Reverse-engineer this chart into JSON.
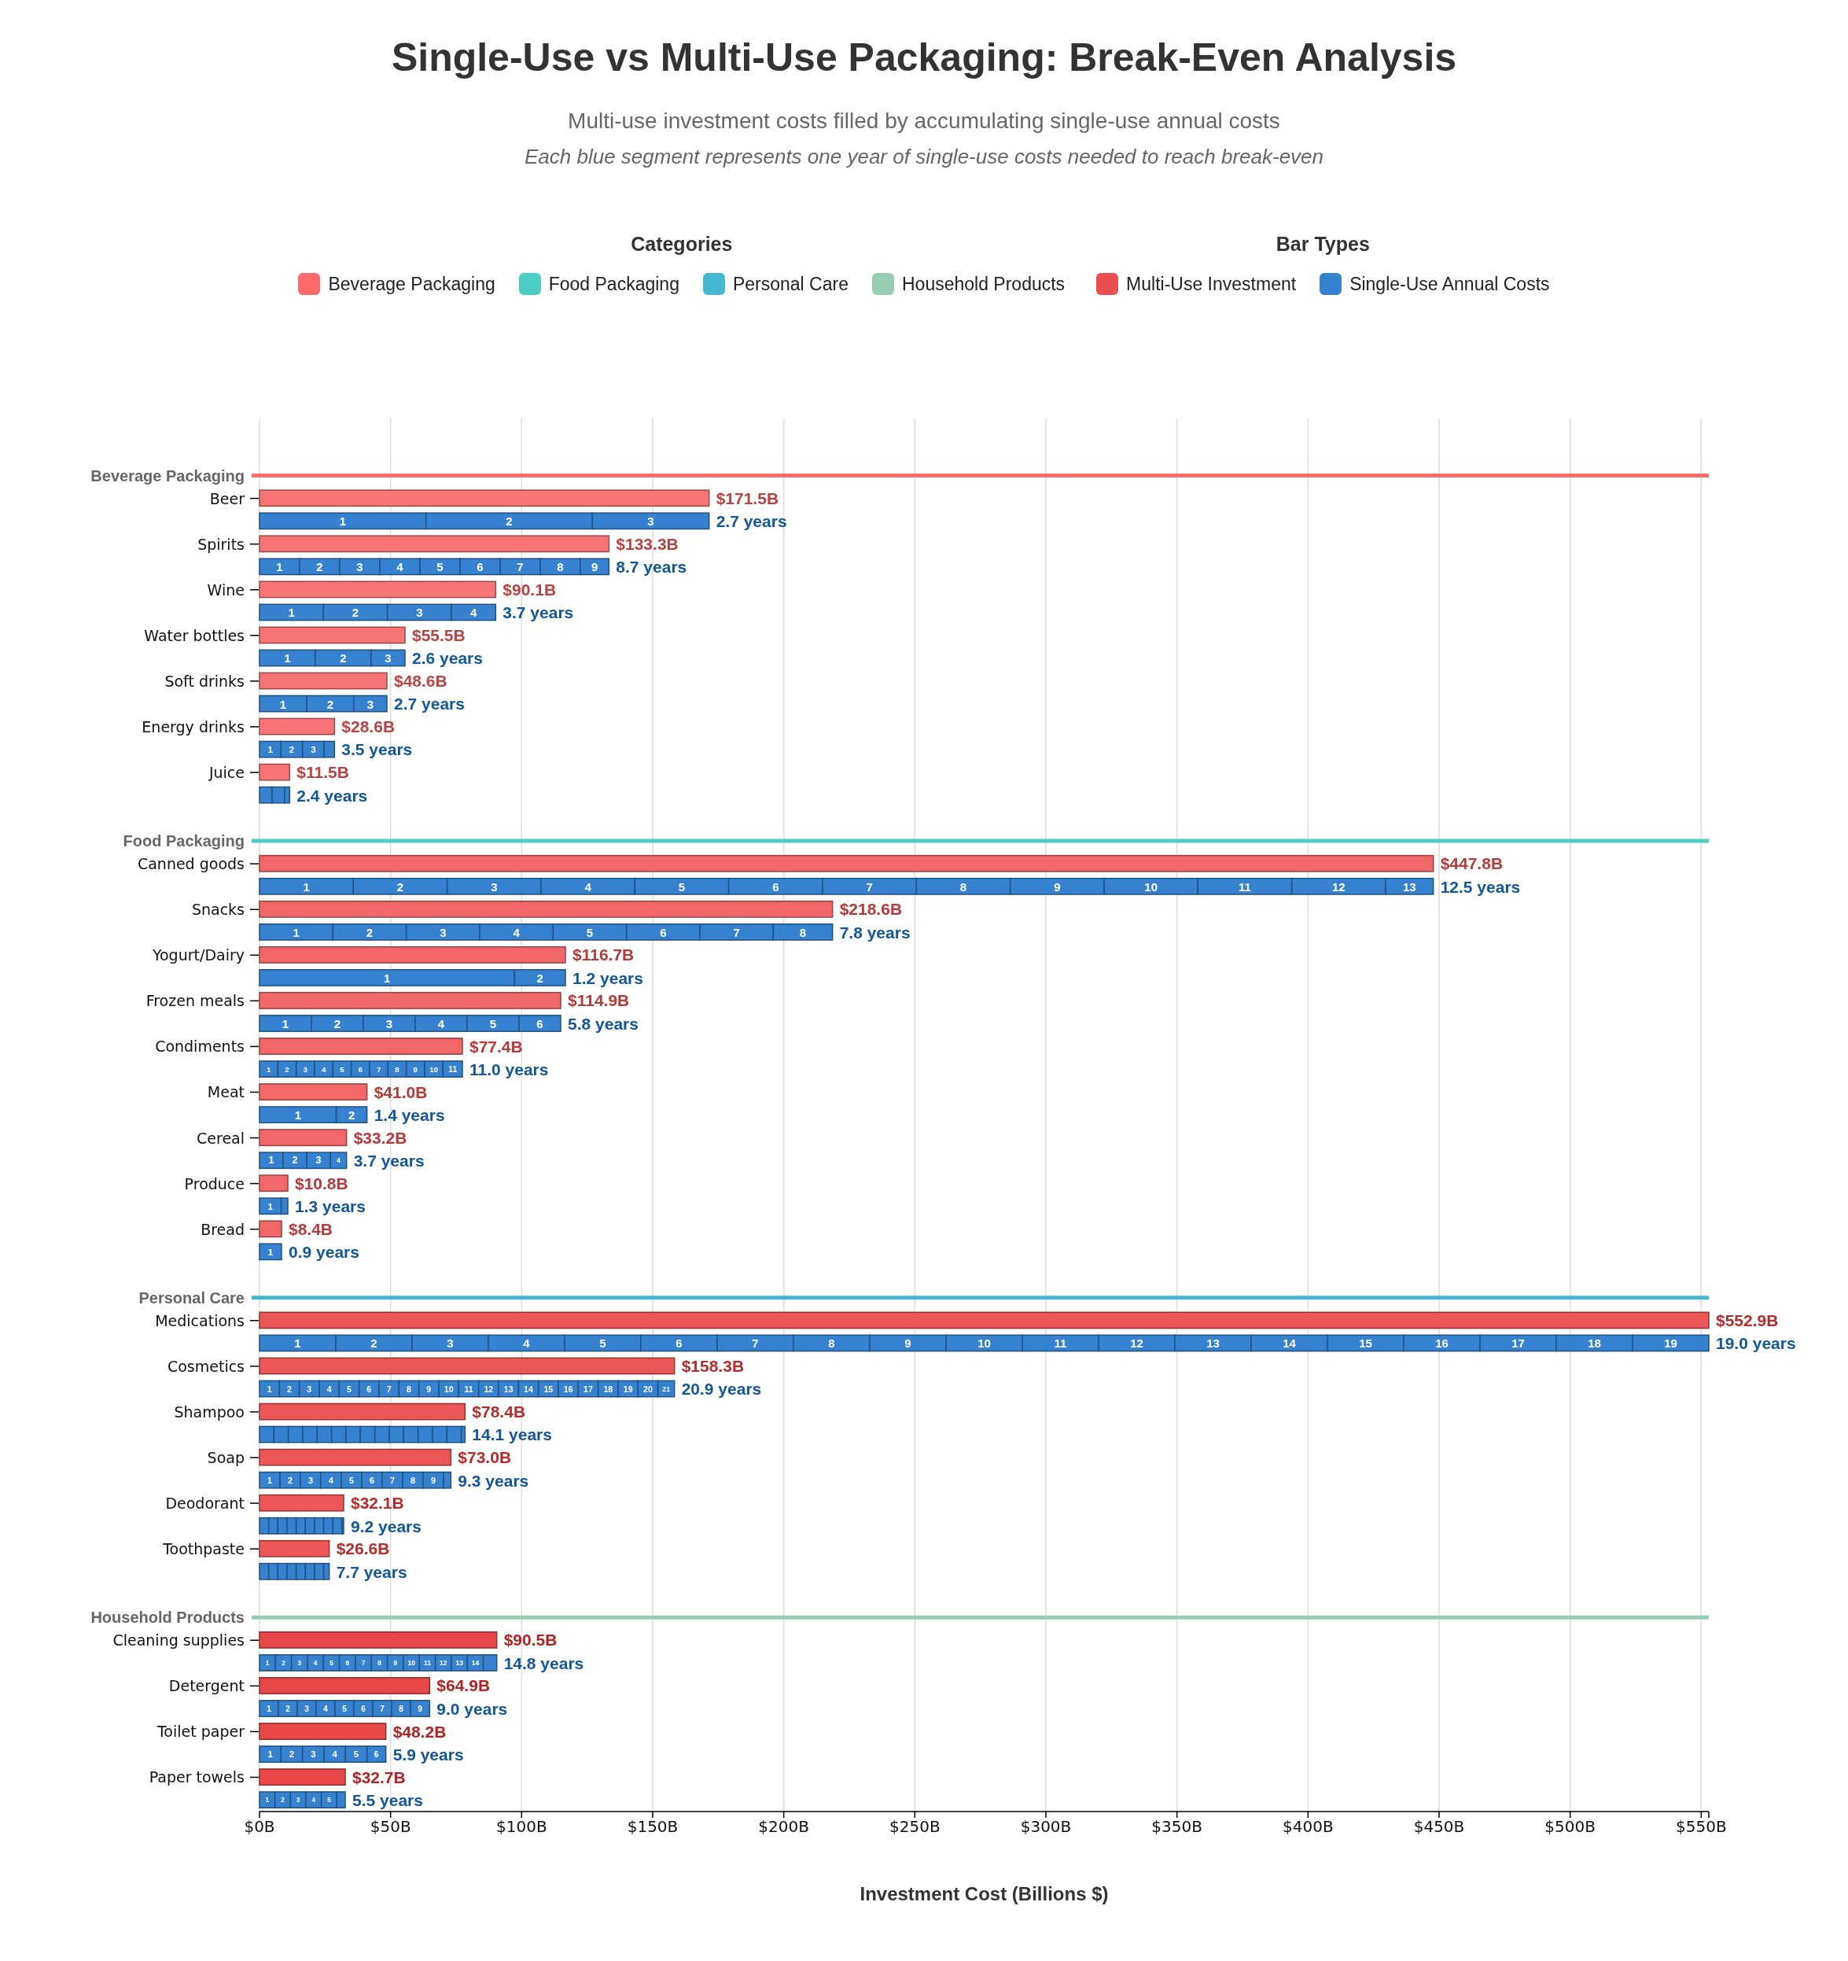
{
  "chart_data": {
    "type": "bar",
    "orientation": "horizontal",
    "stacked": true,
    "title": "Single-Use vs Multi-Use Packaging: Break-Even Analysis",
    "subtitle": "Multi-use investment costs filled by accumulating single-use annual costs",
    "annotations": [
      "Each blue segment represents one year of single-use costs needed to reach break-even",
      "Categories",
      {
        "text": "2.7 years",
        "x": 171.5
      },
      {
        "text": "8.7 years",
        "x": 133.3
      },
      {
        "text": "3.7 years",
        "x": 90.1
      },
      {
        "text": "2.6 years",
        "x": 55.5
      },
      {
        "text": "2.7 years",
        "x": 48.6
      },
      {
        "text": "3.5 years",
        "x": 28.6
      },
      {
        "text": "2.4 years",
        "x": 11.5
      },
      {
        "text": "12.5 years",
        "x": 447.8
      },
      {
        "text": "7.8 years",
        "x": 218.6
      },
      {
        "text": "1.2 years",
        "x": 116.7
      },
      {
        "text": "5.8 years",
        "x": 114.9
      },
      {
        "text": "11.0 years",
        "x": 77.4
      },
      {
        "text": "1.4 years",
        "x": 41.0
      },
      {
        "text": "3.7 years",
        "x": 33.2
      },
      {
        "text": "1.3 years",
        "x": 10.8
      },
      {
        "text": "0.9 years",
        "x": 8.4
      },
      {
        "text": "19.0 years",
        "x": 552.9
      },
      {
        "text": "20.9 years",
        "x": 158.3
      },
      {
        "text": "14.1 years",
        "x": 78.4
      },
      {
        "text": "9.3 years",
        "x": 73.0
      },
      {
        "text": "9.2 years",
        "x": 32.1
      },
      {
        "text": "7.7 years",
        "x": 26.6
      },
      {
        "text": "14.8 years",
        "x": 90.5
      },
      {
        "text": "9.0 years",
        "x": 64.9
      },
      {
        "text": "5.9 years",
        "x": 48.2
      },
      {
        "text": "5.5 years",
        "x": 32.7
      }
    ],
    "legend_title": "Bar Types",
    "legend": "top",
    "grid": "x",
    "xlabel": "Investment Cost (Billions $)",
    "xlim": [
      0,
      552.9
    ],
    "xticks": [
      {
        "value": 0,
        "label": "$0B"
      },
      {
        "value": 50,
        "label": "$50B"
      },
      {
        "value": 100,
        "label": "$100B"
      },
      {
        "value": 150,
        "label": "$150B"
      },
      {
        "value": 200,
        "label": "$200B"
      },
      {
        "value": 250,
        "label": "$250B"
      },
      {
        "value": 300,
        "label": "$300B"
      },
      {
        "value": 350,
        "label": "$350B"
      },
      {
        "value": 400,
        "label": "$400B"
      },
      {
        "value": 450,
        "label": "$450B"
      },
      {
        "value": 500,
        "label": "$500B"
      },
      {
        "value": 550,
        "label": "$550B"
      },
      {
        "value": 552.9,
        "label": null
      }
    ],
    "ref_lines": [
      {
        "axis": "y",
        "value": "Beverage Packaging",
        "color": "#ff6b6b"
      },
      {
        "axis": "y",
        "value": "Food Packaging",
        "color": "#4ecdc4"
      },
      {
        "axis": "y",
        "value": "Personal Care",
        "color": "#45b7d1"
      },
      {
        "axis": "y",
        "value": "Household Products",
        "color": "#96ceb4"
      }
    ],
    "categories": [
      null,
      null,
      "Beverage Packaging",
      "Beer",
      null,
      "Spirits",
      null,
      "Wine",
      null,
      "Water bottles",
      null,
      "Soft drinks",
      null,
      "Energy drinks",
      null,
      "Juice",
      null,
      null,
      "Food Packaging",
      "Canned goods",
      null,
      "Snacks",
      null,
      "Yogurt/Dairy",
      null,
      "Frozen meals",
      null,
      "Condiments",
      null,
      "Meat",
      null,
      "Cereal",
      null,
      "Produce",
      null,
      "Bread",
      null,
      null,
      "Personal Care",
      "Medications",
      null,
      "Cosmetics",
      null,
      "Shampoo",
      null,
      "Soap",
      null,
      "Deodorant",
      null,
      "Toothpaste",
      null,
      null,
      "Household Products",
      "Cleaning supplies",
      null,
      "Detergent",
      null,
      "Toilet paper",
      null,
      "Paper towels",
      null
    ],
    "totals": [
      null,
      null,
      null,
      "$171.5B",
      null,
      "$133.3B",
      null,
      "$90.1B",
      null,
      "$55.5B",
      null,
      "$48.6B",
      null,
      "$28.6B",
      null,
      "$11.5B",
      null,
      null,
      null,
      "$447.8B",
      null,
      "$218.6B",
      null,
      "$116.7B",
      null,
      "$114.9B",
      null,
      "$77.4B",
      null,
      "$41.0B",
      null,
      "$33.2B",
      null,
      "$10.8B",
      null,
      "$8.4B",
      null,
      null,
      null,
      "$552.9B",
      null,
      "$158.3B",
      null,
      "$78.4B",
      null,
      "$73.0B",
      null,
      "$32.1B",
      null,
      "$26.6B",
      null,
      null,
      null,
      "$90.5B",
      null,
      "$64.9B",
      null,
      "$48.2B",
      null,
      "$32.7B",
      null
    ],
    "series": [
      {
        "name": "Multi-Use Investment",
        "color": "#ea4f4f",
        "colors": [
          null,
          null,
          null,
          "#f77575",
          null,
          "#f77575",
          null,
          "#f77575",
          null,
          "#f77575",
          null,
          "#f77575",
          null,
          "#f77575",
          null,
          "#f77575",
          null,
          null,
          null,
          "#f26868",
          null,
          "#f26868",
          null,
          "#f26868",
          null,
          "#f26868",
          null,
          "#f26868",
          null,
          "#f26868",
          null,
          "#f26868",
          null,
          "#f26868",
          null,
          "#f26868",
          null,
          null,
          null,
          "#ec5656",
          null,
          "#ec5656",
          null,
          "#ec5656",
          null,
          "#ec5656",
          null,
          "#ec5656",
          null,
          "#ec5656",
          null,
          null,
          null,
          "#e84848",
          null,
          "#e84848",
          null,
          "#e84848",
          null,
          "#e84848",
          null
        ],
        "values": [
          null,
          null,
          null,
          171.5,
          null,
          133.3,
          null,
          90.1,
          null,
          55.5,
          null,
          48.6,
          null,
          28.6,
          null,
          11.5,
          null,
          null,
          null,
          447.8,
          null,
          218.6,
          null,
          116.7,
          null,
          114.9,
          null,
          77.4,
          null,
          41.0,
          null,
          33.2,
          null,
          10.8,
          null,
          8.4,
          null,
          null,
          null,
          552.9,
          null,
          158.3,
          null,
          78.4,
          null,
          73.0,
          null,
          32.1,
          null,
          26.6,
          null,
          null,
          null,
          90.5,
          null,
          64.9,
          null,
          48.2,
          null,
          32.7,
          null
        ]
      },
      {
        "name": "Single-Use Annual Costs",
        "color": "#3682d0",
        "values": [
          null,
          null,
          null,
          null,
          null,
          null,
          null,
          null,
          null,
          null,
          null,
          null,
          null,
          null,
          null,
          null,
          null,
          null,
          null,
          null,
          null,
          null,
          null,
          null,
          null,
          null,
          null,
          null,
          null,
          null,
          null,
          null,
          null,
          null,
          null,
          null,
          null,
          null,
          null,
          null,
          null,
          null,
          null,
          null,
          null,
          null,
          null,
          null,
          null,
          null,
          null,
          null,
          null,
          null,
          null,
          null,
          null,
          null,
          null,
          null,
          null
        ]
      },
      {
        "name": "1",
        "color": "#3682d0",
        "values": [
          null,
          null,
          null,
          null,
          63.5,
          null,
          15.3,
          null,
          24.4,
          null,
          21.3,
          null,
          18.0,
          null,
          8.2,
          null,
          4.8,
          null,
          null,
          null,
          35.8,
          null,
          28.0,
          null,
          97.3,
          null,
          19.8,
          null,
          7.0,
          null,
          29.3,
          null,
          9.0,
          null,
          8.3,
          null,
          8.4,
          null,
          null,
          null,
          29.1,
          null,
          7.6,
          null,
          5.5,
          null,
          7.8,
          null,
          3.5,
          null,
          3.5,
          null,
          null,
          null,
          6.1,
          null,
          7.2,
          null,
          8.2,
          null,
          5.9
        ]
      },
      {
        "name": "2",
        "color": "#3682d0",
        "values": [
          null,
          null,
          null,
          null,
          63.5,
          null,
          15.3,
          null,
          24.4,
          null,
          21.3,
          null,
          18.0,
          null,
          8.2,
          null,
          4.8,
          null,
          null,
          null,
          35.8,
          null,
          28.0,
          null,
          19.4,
          null,
          19.8,
          null,
          7.0,
          null,
          11.7,
          null,
          9.0,
          null,
          2.5,
          null,
          null,
          null,
          null,
          null,
          29.1,
          null,
          7.6,
          null,
          5.5,
          null,
          7.8,
          null,
          3.5,
          null,
          3.5,
          null,
          null,
          null,
          6.1,
          null,
          7.2,
          null,
          8.2,
          null,
          5.9
        ]
      },
      {
        "name": "3",
        "color": "#3682d0",
        "values": [
          null,
          null,
          null,
          null,
          44.5,
          null,
          15.3,
          null,
          24.4,
          null,
          12.9,
          null,
          12.6,
          null,
          8.2,
          null,
          1.9,
          null,
          null,
          null,
          35.8,
          null,
          28.0,
          null,
          null,
          null,
          19.8,
          null,
          7.0,
          null,
          null,
          null,
          9.0,
          null,
          null,
          null,
          null,
          null,
          null,
          null,
          29.1,
          null,
          7.6,
          null,
          5.5,
          null,
          7.8,
          null,
          3.5,
          null,
          3.5,
          null,
          null,
          null,
          6.1,
          null,
          7.2,
          null,
          8.2,
          null,
          5.9
        ]
      },
      {
        "name": "4",
        "color": "#3682d0",
        "values": [
          null,
          null,
          null,
          null,
          null,
          null,
          15.3,
          null,
          16.9,
          null,
          null,
          null,
          null,
          null,
          4.0,
          null,
          null,
          null,
          null,
          null,
          35.8,
          null,
          28.0,
          null,
          null,
          null,
          19.8,
          null,
          7.0,
          null,
          null,
          null,
          6.2,
          null,
          null,
          null,
          null,
          null,
          null,
          null,
          29.1,
          null,
          7.6,
          null,
          5.5,
          null,
          7.8,
          null,
          3.5,
          null,
          3.5,
          null,
          null,
          null,
          6.1,
          null,
          7.2,
          null,
          8.2,
          null,
          5.9
        ]
      },
      {
        "name": "5",
        "color": "#3682d0",
        "values": [
          null,
          null,
          null,
          null,
          null,
          null,
          15.3,
          null,
          null,
          null,
          null,
          null,
          null,
          null,
          null,
          null,
          null,
          null,
          null,
          null,
          35.8,
          null,
          28.0,
          null,
          null,
          null,
          19.8,
          null,
          7.0,
          null,
          null,
          null,
          null,
          null,
          null,
          null,
          null,
          null,
          null,
          null,
          29.1,
          null,
          7.6,
          null,
          5.5,
          null,
          7.8,
          null,
          3.5,
          null,
          3.5,
          null,
          null,
          null,
          6.1,
          null,
          7.2,
          null,
          8.2,
          null,
          5.9
        ]
      },
      {
        "name": "6",
        "color": "#3682d0",
        "values": [
          null,
          null,
          null,
          null,
          null,
          null,
          15.3,
          null,
          null,
          null,
          null,
          null,
          null,
          null,
          null,
          null,
          null,
          null,
          null,
          null,
          35.8,
          null,
          28.0,
          null,
          null,
          null,
          15.9,
          null,
          7.0,
          null,
          null,
          null,
          null,
          null,
          null,
          null,
          null,
          null,
          null,
          null,
          29.1,
          null,
          7.6,
          null,
          5.5,
          null,
          7.8,
          null,
          3.5,
          null,
          3.5,
          null,
          null,
          null,
          6.1,
          null,
          7.2,
          null,
          7.2,
          null,
          3.2
        ]
      },
      {
        "name": "7",
        "color": "#3682d0",
        "values": [
          null,
          null,
          null,
          null,
          null,
          null,
          15.3,
          null,
          null,
          null,
          null,
          null,
          null,
          null,
          null,
          null,
          null,
          null,
          null,
          null,
          35.8,
          null,
          28.0,
          null,
          null,
          null,
          null,
          null,
          7.0,
          null,
          null,
          null,
          null,
          null,
          null,
          null,
          null,
          null,
          null,
          null,
          29.1,
          null,
          7.6,
          null,
          5.5,
          null,
          7.8,
          null,
          3.5,
          null,
          3.5,
          null,
          null,
          null,
          6.1,
          null,
          7.2,
          null,
          null,
          null,
          null
        ]
      },
      {
        "name": "8",
        "color": "#3682d0",
        "values": [
          null,
          null,
          null,
          null,
          null,
          null,
          15.3,
          null,
          null,
          null,
          null,
          null,
          null,
          null,
          null,
          null,
          null,
          null,
          null,
          null,
          35.8,
          null,
          22.6,
          null,
          null,
          null,
          null,
          null,
          7.0,
          null,
          null,
          null,
          null,
          null,
          null,
          null,
          null,
          null,
          null,
          null,
          29.1,
          null,
          7.6,
          null,
          5.5,
          null,
          7.8,
          null,
          3.5,
          null,
          2.1,
          null,
          null,
          null,
          6.1,
          null,
          7.2,
          null,
          null,
          null,
          null
        ]
      },
      {
        "name": "9",
        "color": "#3682d0",
        "values": [
          null,
          null,
          null,
          null,
          null,
          null,
          10.9,
          null,
          null,
          null,
          null,
          null,
          null,
          null,
          null,
          null,
          null,
          null,
          null,
          null,
          35.8,
          null,
          null,
          null,
          null,
          null,
          null,
          null,
          7.0,
          null,
          null,
          null,
          null,
          null,
          null,
          null,
          null,
          null,
          null,
          null,
          29.1,
          null,
          7.6,
          null,
          5.5,
          null,
          7.8,
          null,
          3.5,
          null,
          null,
          null,
          null,
          null,
          6.1,
          null,
          7.3,
          null,
          null,
          null,
          null
        ]
      },
      {
        "name": "10",
        "color": "#3682d0",
        "values": [
          null,
          null,
          null,
          null,
          null,
          null,
          null,
          null,
          null,
          null,
          null,
          null,
          null,
          null,
          null,
          null,
          null,
          null,
          null,
          null,
          35.8,
          null,
          null,
          null,
          null,
          null,
          null,
          null,
          7.0,
          null,
          null,
          null,
          null,
          null,
          null,
          null,
          null,
          null,
          null,
          null,
          29.1,
          null,
          7.6,
          null,
          5.5,
          null,
          2.8,
          null,
          0.6,
          null,
          null,
          null,
          null,
          null,
          6.1,
          null,
          null,
          null,
          null,
          null,
          null
        ]
      },
      {
        "name": "11",
        "color": "#3682d0",
        "values": [
          null,
          null,
          null,
          null,
          null,
          null,
          null,
          null,
          null,
          null,
          null,
          null,
          null,
          null,
          null,
          null,
          null,
          null,
          null,
          null,
          35.8,
          null,
          null,
          null,
          null,
          null,
          null,
          null,
          7.4,
          null,
          null,
          null,
          null,
          null,
          null,
          null,
          null,
          null,
          null,
          null,
          29.1,
          null,
          7.6,
          null,
          5.5,
          null,
          null,
          null,
          null,
          null,
          null,
          null,
          null,
          null,
          6.1,
          null,
          null,
          null,
          null,
          null,
          null
        ]
      },
      {
        "name": "12",
        "color": "#3682d0",
        "values": [
          null,
          null,
          null,
          null,
          null,
          null,
          null,
          null,
          null,
          null,
          null,
          null,
          null,
          null,
          null,
          null,
          null,
          null,
          null,
          null,
          35.8,
          null,
          null,
          null,
          null,
          null,
          null,
          null,
          null,
          null,
          null,
          null,
          null,
          null,
          null,
          null,
          null,
          null,
          null,
          null,
          29.1,
          null,
          7.6,
          null,
          5.5,
          null,
          null,
          null,
          null,
          null,
          null,
          null,
          null,
          null,
          6.1,
          null,
          null,
          null,
          null,
          null,
          null
        ]
      },
      {
        "name": "13",
        "color": "#3682d0",
        "values": [
          null,
          null,
          null,
          null,
          null,
          null,
          null,
          null,
          null,
          null,
          null,
          null,
          null,
          null,
          null,
          null,
          null,
          null,
          null,
          null,
          18.2,
          null,
          null,
          null,
          null,
          null,
          null,
          null,
          null,
          null,
          null,
          null,
          null,
          null,
          null,
          null,
          null,
          null,
          null,
          null,
          29.1,
          null,
          7.6,
          null,
          5.5,
          null,
          null,
          null,
          null,
          null,
          null,
          null,
          null,
          null,
          6.1,
          null,
          null,
          null,
          null,
          null,
          null
        ]
      },
      {
        "name": "14",
        "color": "#3682d0",
        "values": [
          null,
          null,
          null,
          null,
          null,
          null,
          null,
          null,
          null,
          null,
          null,
          null,
          null,
          null,
          null,
          null,
          null,
          null,
          null,
          null,
          null,
          null,
          null,
          null,
          null,
          null,
          null,
          null,
          null,
          null,
          null,
          null,
          null,
          null,
          null,
          null,
          null,
          null,
          null,
          null,
          29.1,
          null,
          7.6,
          null,
          5.5,
          null,
          null,
          null,
          null,
          null,
          null,
          null,
          null,
          null,
          6.1,
          null,
          null,
          null,
          null,
          null,
          null
        ]
      },
      {
        "name": "15",
        "color": "#3682d0",
        "values": [
          null,
          null,
          null,
          null,
          null,
          null,
          null,
          null,
          null,
          null,
          null,
          null,
          null,
          null,
          null,
          null,
          null,
          null,
          null,
          null,
          null,
          null,
          null,
          null,
          null,
          null,
          null,
          null,
          null,
          null,
          null,
          null,
          null,
          null,
          null,
          null,
          null,
          null,
          null,
          null,
          29.1,
          null,
          7.6,
          null,
          1.4,
          null,
          null,
          null,
          null,
          null,
          null,
          null,
          null,
          null,
          5.1,
          null,
          null,
          null,
          null,
          null,
          null
        ]
      },
      {
        "name": "16",
        "color": "#3682d0",
        "values": [
          null,
          null,
          null,
          null,
          null,
          null,
          null,
          null,
          null,
          null,
          null,
          null,
          null,
          null,
          null,
          null,
          null,
          null,
          null,
          null,
          null,
          null,
          null,
          null,
          null,
          null,
          null,
          null,
          null,
          null,
          null,
          null,
          null,
          null,
          null,
          null,
          null,
          null,
          null,
          null,
          29.1,
          null,
          7.6,
          null,
          null,
          null,
          null,
          null,
          null,
          null,
          null,
          null,
          null,
          null,
          null,
          null,
          null,
          null,
          null,
          null,
          null
        ]
      },
      {
        "name": "17",
        "color": "#3682d0",
        "values": [
          null,
          null,
          null,
          null,
          null,
          null,
          null,
          null,
          null,
          null,
          null,
          null,
          null,
          null,
          null,
          null,
          null,
          null,
          null,
          null,
          null,
          null,
          null,
          null,
          null,
          null,
          null,
          null,
          null,
          null,
          null,
          null,
          null,
          null,
          null,
          null,
          null,
          null,
          null,
          null,
          29.1,
          null,
          7.6,
          null,
          null,
          null,
          null,
          null,
          null,
          null,
          null,
          null,
          null,
          null,
          null,
          null,
          null,
          null,
          null,
          null,
          null
        ]
      },
      {
        "name": "18",
        "color": "#3682d0",
        "values": [
          null,
          null,
          null,
          null,
          null,
          null,
          null,
          null,
          null,
          null,
          null,
          null,
          null,
          null,
          null,
          null,
          null,
          null,
          null,
          null,
          null,
          null,
          null,
          null,
          null,
          null,
          null,
          null,
          null,
          null,
          null,
          null,
          null,
          null,
          null,
          null,
          null,
          null,
          null,
          null,
          29.1,
          null,
          7.6,
          null,
          null,
          null,
          null,
          null,
          null,
          null,
          null,
          null,
          null,
          null,
          null,
          null,
          null,
          null,
          null,
          null,
          null
        ]
      },
      {
        "name": "19",
        "color": "#3682d0",
        "values": [
          null,
          null,
          null,
          null,
          null,
          null,
          null,
          null,
          null,
          null,
          null,
          null,
          null,
          null,
          null,
          null,
          null,
          null,
          null,
          null,
          null,
          null,
          null,
          null,
          null,
          null,
          null,
          null,
          null,
          null,
          null,
          null,
          null,
          null,
          null,
          null,
          null,
          null,
          null,
          null,
          29.1,
          null,
          7.6,
          null,
          null,
          null,
          null,
          null,
          null,
          null,
          null,
          null,
          null,
          null,
          null,
          null,
          null,
          null,
          null,
          null,
          null
        ]
      },
      {
        "name": "20",
        "color": "#3682d0",
        "values": [
          null,
          null,
          null,
          null,
          null,
          null,
          null,
          null,
          null,
          null,
          null,
          null,
          null,
          null,
          null,
          null,
          null,
          null,
          null,
          null,
          null,
          null,
          null,
          null,
          null,
          null,
          null,
          null,
          null,
          null,
          null,
          null,
          null,
          null,
          null,
          null,
          null,
          null,
          null,
          null,
          null,
          null,
          7.6,
          null,
          null,
          null,
          null,
          null,
          null,
          null,
          null,
          null,
          null,
          null,
          null,
          null,
          null,
          null,
          null,
          null,
          null
        ]
      },
      {
        "name": "21",
        "color": "#3682d0",
        "values": [
          null,
          null,
          null,
          null,
          null,
          null,
          null,
          null,
          null,
          null,
          null,
          null,
          null,
          null,
          null,
          null,
          null,
          null,
          null,
          null,
          null,
          null,
          null,
          null,
          null,
          null,
          null,
          null,
          null,
          null,
          null,
          null,
          null,
          null,
          null,
          null,
          null,
          null,
          null,
          null,
          null,
          null,
          6.3,
          null,
          null,
          null,
          null,
          null,
          null,
          null,
          null,
          null,
          null,
          null,
          null,
          null,
          null,
          null,
          null,
          null,
          null
        ]
      }
    ]
  }
}
